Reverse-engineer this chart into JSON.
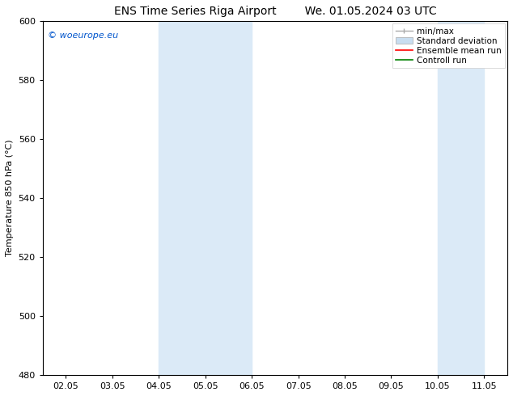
{
  "title_left": "ENS Time Series Riga Airport",
  "title_right": "We. 01.05.2024 03 UTC",
  "ylabel": "Temperature 850 hPa (°C)",
  "ylim": [
    480,
    600
  ],
  "yticks": [
    480,
    500,
    520,
    540,
    560,
    580,
    600
  ],
  "xtick_labels": [
    "02.05",
    "03.05",
    "04.05",
    "05.05",
    "06.05",
    "07.05",
    "08.05",
    "09.05",
    "10.05",
    "11.05"
  ],
  "xtick_days": [
    2,
    3,
    4,
    5,
    6,
    7,
    8,
    9,
    10,
    11
  ],
  "xlim_start_day": 1.5,
  "xlim_end_day": 11.5,
  "band1_start_day": 4,
  "band1_end_day": 6,
  "band2_start_day": 10,
  "band2_end_day": 11,
  "watermark_text": "© woeurope.eu",
  "watermark_color": "#0055cc",
  "shading_color": "#dbeaf7",
  "bg_color": "#ffffff",
  "title_fontsize": 10,
  "tick_fontsize": 8,
  "ylabel_fontsize": 8,
  "legend_fontsize": 7.5,
  "minmax_color": "#aaaaaa",
  "std_color": "#c8ddf0",
  "ens_color": "#ff0000",
  "ctrl_color": "#008000"
}
